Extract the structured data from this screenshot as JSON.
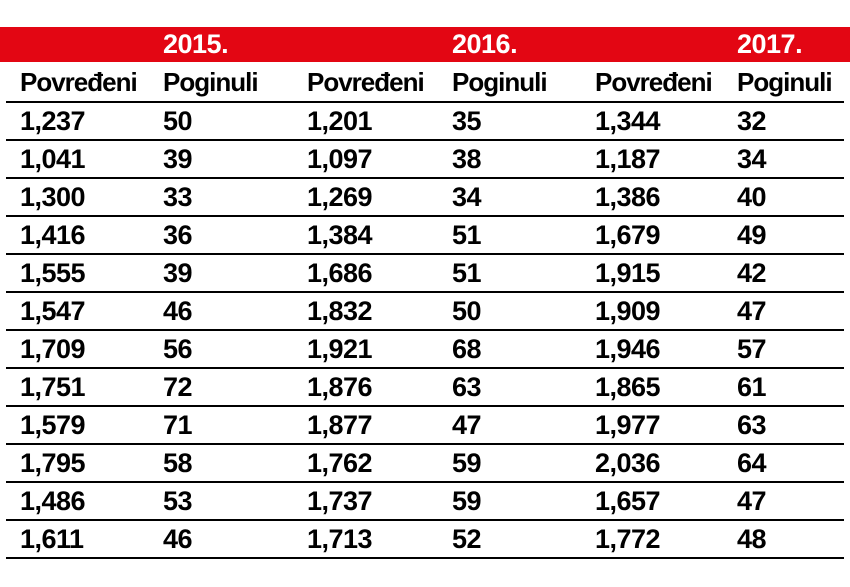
{
  "chart_data": {
    "type": "table",
    "years": [
      "2015.",
      "2016.",
      "2017."
    ],
    "column_headers": [
      "Povređeni",
      "Poginuli",
      "Povređeni",
      "Poginuli",
      "Povređeni",
      "Poginuli"
    ],
    "rows": [
      [
        "1,237",
        "50",
        "1,201",
        "35",
        "1,344",
        "32"
      ],
      [
        "1,041",
        "39",
        "1,097",
        "38",
        "1,187",
        "34"
      ],
      [
        "1,300",
        "33",
        "1,269",
        "34",
        "1,386",
        "40"
      ],
      [
        "1,416",
        "36",
        "1,384",
        "51",
        "1,679",
        "49"
      ],
      [
        "1,555",
        "39",
        "1,686",
        "51",
        "1,915",
        "42"
      ],
      [
        "1,547",
        "46",
        "1,832",
        "50",
        "1,909",
        "47"
      ],
      [
        "1,709",
        "56",
        "1,921",
        "68",
        "1,946",
        "57"
      ],
      [
        "1,751",
        "72",
        "1,876",
        "63",
        "1,865",
        "61"
      ],
      [
        "1,579",
        "71",
        "1,877",
        "47",
        "1,977",
        "63"
      ],
      [
        "1,795",
        "58",
        "1,762",
        "59",
        "2,036",
        "64"
      ],
      [
        "1,486",
        "53",
        "1,737",
        "59",
        "1,657",
        "47"
      ],
      [
        "1,611",
        "46",
        "1,713",
        "52",
        "1,772",
        "48"
      ]
    ],
    "layout": {
      "grid": "horizontal rules under header and every row",
      "legend_position": "none"
    }
  },
  "colors": {
    "band_red": "#e30613",
    "text": "#000000",
    "rule": "#000000"
  }
}
